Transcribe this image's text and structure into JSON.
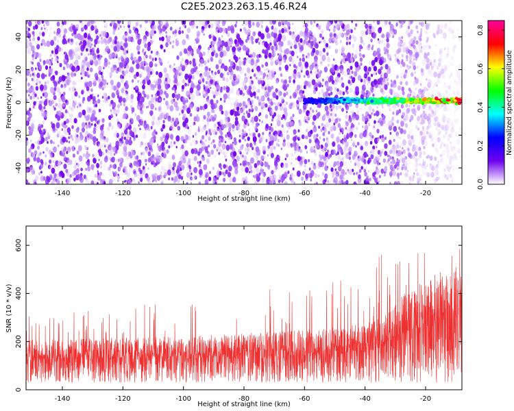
{
  "title": "C2E5.2023.263.15.46.R24",
  "chart_data": [
    {
      "type": "heatmap",
      "xlabel": "Height of straight line (km)",
      "ylabel": "Frequency (Hz)",
      "xlim": [
        -152,
        -8
      ],
      "ylim": [
        -50,
        50
      ],
      "x_ticks": [
        -140,
        -120,
        -100,
        -80,
        -60,
        -40,
        -20
      ],
      "y_ticks": [
        -40,
        -20,
        0,
        20,
        40
      ],
      "colorbar": {
        "label": "Normalized spectral amplitude",
        "range": [
          0.0,
          0.85
        ],
        "ticks": [
          0.0,
          0.2,
          0.4,
          0.6,
          0.8
        ],
        "colormap": [
          "#ffffff",
          "#7000ee",
          "#0000ff",
          "#00ffff",
          "#00ff00",
          "#ffff00",
          "#ff0000",
          "#ff00a0"
        ]
      },
      "background_noise_amplitude": [
        0.0,
        0.12
      ],
      "noise_fades_from_x": -35,
      "echo_trace": {
        "description": "narrow band near 0-2 Hz",
        "x_start": -60,
        "x_end": -8,
        "frequency_center": 1,
        "amplitude_start": 0.2,
        "amplitude_end": 0.8
      }
    },
    {
      "type": "line",
      "xlabel": "Height of straight line (km)",
      "ylabel": "SNR (10 * v/v)",
      "xlim": [
        -152,
        -8
      ],
      "ylim": [
        0,
        680
      ],
      "x_ticks": [
        -140,
        -120,
        -100,
        -80,
        -60,
        -40,
        -20
      ],
      "y_ticks": [
        0,
        200,
        400,
        600
      ],
      "series": [
        {
          "color": "#ee3030",
          "envelope_x": [
            -152,
            -130,
            -110,
            -90,
            -70,
            -50,
            -40,
            -35,
            -30,
            -25,
            -20,
            -15,
            -10,
            -8
          ],
          "envelope_min": [
            30,
            30,
            30,
            30,
            30,
            30,
            30,
            30,
            30,
            30,
            30,
            30,
            30,
            30
          ],
          "envelope_base": [
            160,
            165,
            170,
            175,
            185,
            200,
            210,
            230,
            280,
            330,
            350,
            380,
            400,
            400
          ],
          "envelope_peak": [
            330,
            340,
            360,
            380,
            420,
            460,
            450,
            580,
            560,
            580,
            620,
            640,
            680,
            600
          ]
        }
      ]
    }
  ]
}
